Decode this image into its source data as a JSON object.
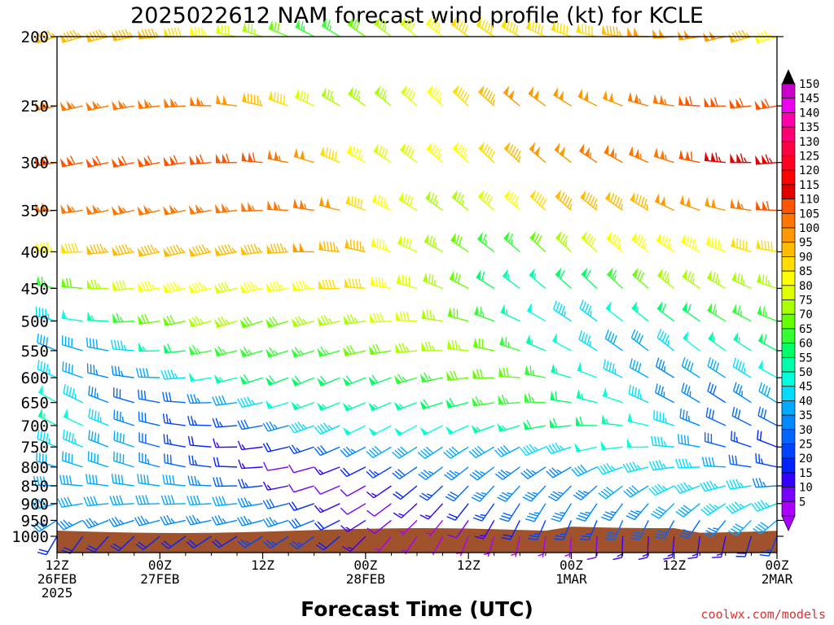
{
  "chart_data": {
    "type": "wind-barb-time-height",
    "title": "2025022612 NAM forecast wind profile (kt) for KCLE",
    "xlabel": "Forecast Time (UTC)",
    "ylabel": "",
    "y_scale": "log-pressure",
    "y_unit": "hPa",
    "ylim": [
      1000,
      200
    ],
    "y_ticks": [
      200,
      250,
      300,
      350,
      400,
      450,
      500,
      550,
      600,
      650,
      700,
      750,
      800,
      850,
      900,
      950,
      1000
    ],
    "x_range_hours": [
      0,
      84
    ],
    "x_ticks": [
      {
        "hour": 0,
        "lines": [
          "12Z",
          "26FEB",
          "2025"
        ]
      },
      {
        "hour": 12,
        "lines": [
          "00Z",
          "27FEB"
        ]
      },
      {
        "hour": 24,
        "lines": [
          "12Z"
        ]
      },
      {
        "hour": 36,
        "lines": [
          "00Z",
          "28FEB"
        ]
      },
      {
        "hour": 48,
        "lines": [
          "12Z"
        ]
      },
      {
        "hour": 60,
        "lines": [
          "00Z",
          "1MAR"
        ]
      },
      {
        "hour": 72,
        "lines": [
          "12Z"
        ]
      },
      {
        "hour": 84,
        "lines": [
          "00Z",
          "2MAR"
        ]
      }
    ],
    "grid": false,
    "colorbar": {
      "position": "right",
      "labels": [
        150,
        145,
        140,
        135,
        130,
        125,
        120,
        115,
        110,
        105,
        100,
        95,
        90,
        85,
        80,
        75,
        70,
        65,
        60,
        55,
        50,
        45,
        40,
        35,
        30,
        25,
        20,
        15,
        10,
        5
      ],
      "colors": [
        "#cc00cc",
        "#ee00ee",
        "#ff00aa",
        "#ff0077",
        "#ff0044",
        "#ff0022",
        "#ff0000",
        "#e00000",
        "#ff5500",
        "#ff7700",
        "#ff9900",
        "#ffbb00",
        "#ffdd00",
        "#ffff00",
        "#ddff00",
        "#aaff00",
        "#66ff00",
        "#33ff33",
        "#00ff66",
        "#00ffaa",
        "#00ffdd",
        "#00ddff",
        "#00aaff",
        "#0088ff",
        "#0066ff",
        "#0044ff",
        "#0022ff",
        "#3300ff",
        "#7700ff",
        "#aa00ff"
      ]
    },
    "terrain_color": "#a0522d",
    "forecast_hours": [
      0,
      3,
      6,
      9,
      12,
      15,
      18,
      21,
      24,
      27,
      30,
      33,
      36,
      39,
      42,
      45,
      48,
      51,
      54,
      57,
      60,
      63,
      66,
      69,
      72,
      75,
      78,
      81,
      84
    ],
    "levels": [
      1000,
      950,
      900,
      850,
      800,
      750,
      700,
      650,
      600,
      550,
      500,
      450,
      400,
      350,
      300,
      250,
      200
    ],
    "speed_profile_kt": [
      12,
      25,
      30,
      30,
      30,
      35,
      45,
      50,
      55,
      60,
      65,
      75,
      85,
      95,
      100,
      95,
      85
    ],
    "direction_profile_deg": [
      210,
      230,
      240,
      250,
      260,
      265,
      270,
      275,
      275,
      280,
      280,
      285,
      285,
      285,
      285,
      285,
      280
    ],
    "source_credit": "coolwx.com/models"
  }
}
